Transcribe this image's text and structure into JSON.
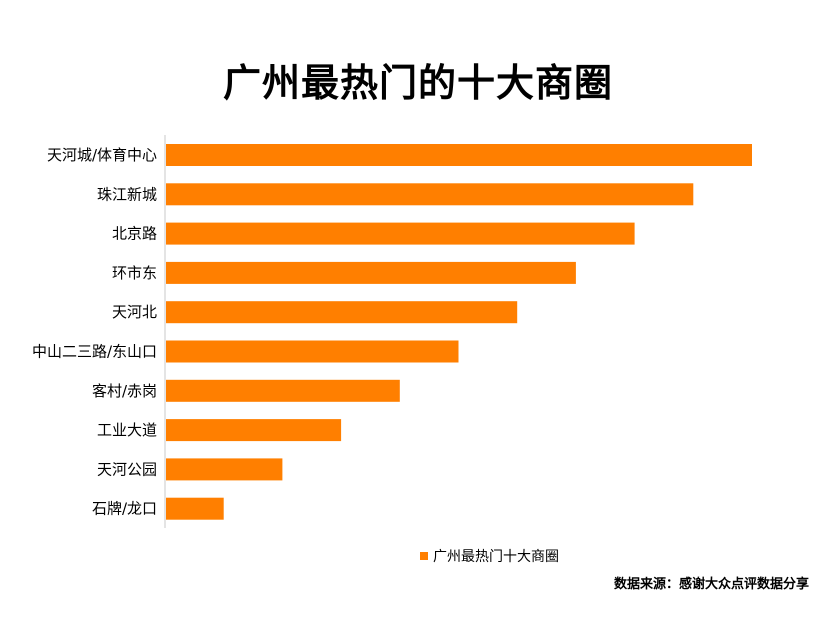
{
  "chart_data": {
    "type": "bar",
    "orientation": "horizontal",
    "title": "广州最热门的十大商圈",
    "categories": [
      "天河城/体育中心",
      "珠江新城",
      "北京路",
      "环市东",
      "天河北",
      "中山二三路/东山口",
      "客村/赤岗",
      "工业大道",
      "天河公园",
      "石牌/龙口"
    ],
    "series": [
      {
        "name": "广州最热门十大商圈",
        "values": [
          10,
          9,
          8,
          7,
          6,
          5,
          4,
          3,
          2,
          1
        ]
      }
    ],
    "xlim": [
      0,
      10
    ],
    "xlabel": "",
    "ylabel": "",
    "grid": false,
    "legend_position": "bottom"
  },
  "colors": {
    "bar": "#FF7F00",
    "axis": "#C8C8C8"
  },
  "source_note": "数据来源：感谢大众点评数据分享"
}
